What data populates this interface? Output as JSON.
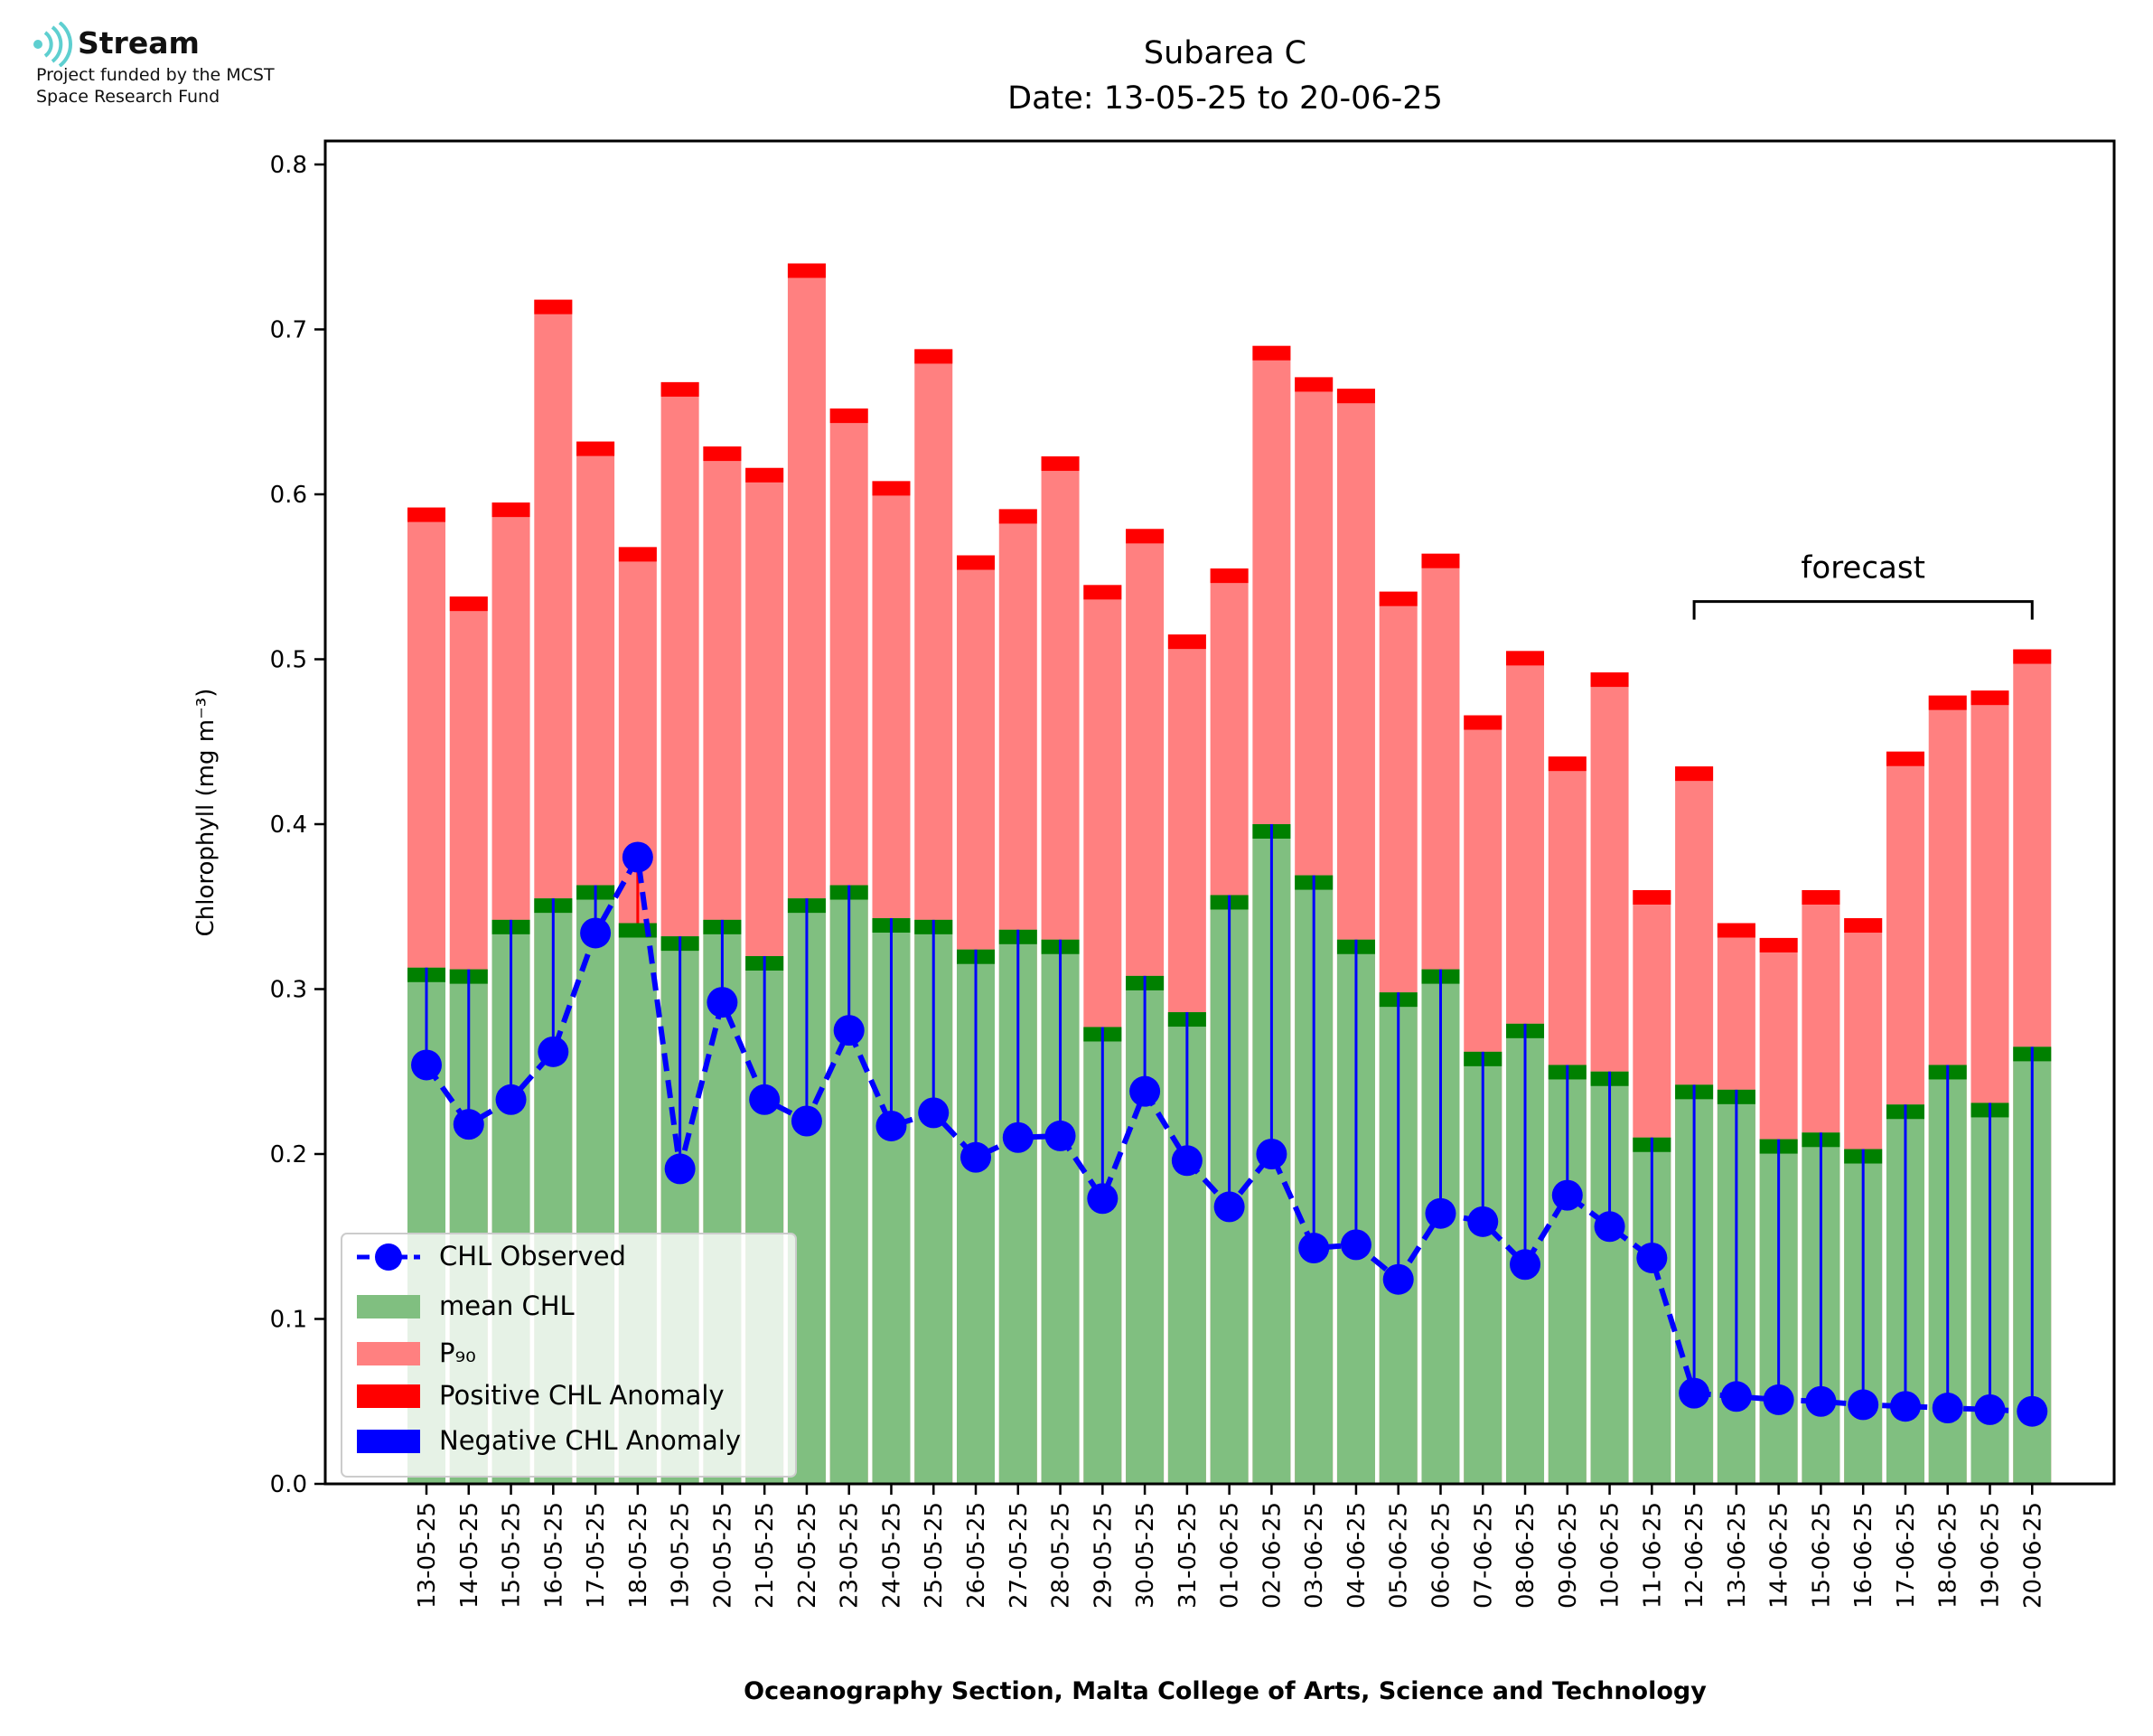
{
  "logo": {
    "brand": "Stream",
    "line1": "Project funded by the MCST",
    "line2": "Space Research Fund"
  },
  "colors": {
    "mean": "#80bf80",
    "mean_cap": "#008000",
    "p90": "#ff8080",
    "p90_cap": "#ff0000",
    "observed": "#0000ff",
    "logo_icon": "#5ecfd0"
  },
  "chart_data": {
    "type": "bar",
    "title": "Subarea C",
    "subtitle": "Date: 13-05-25 to 20-06-25",
    "xlabel": "Oceanography Section, Malta College of Arts, Science and Technology",
    "ylabel": "Chlorophyll (mg m⁻³)",
    "ylim": [
      0,
      0.8
    ],
    "yticks": [
      "0.0",
      "0.1",
      "0.2",
      "0.3",
      "0.4",
      "0.5",
      "0.6",
      "0.7",
      "0.8"
    ],
    "legend_position": "lower-left",
    "categories": [
      "13-05-25",
      "14-05-25",
      "15-05-25",
      "16-05-25",
      "17-05-25",
      "18-05-25",
      "19-05-25",
      "20-05-25",
      "21-05-25",
      "22-05-25",
      "23-05-25",
      "24-05-25",
      "25-05-25",
      "26-05-25",
      "27-05-25",
      "28-05-25",
      "29-05-25",
      "30-05-25",
      "31-05-25",
      "01-06-25",
      "02-06-25",
      "03-06-25",
      "04-06-25",
      "05-06-25",
      "06-06-25",
      "07-06-25",
      "08-06-25",
      "09-06-25",
      "10-06-25",
      "11-06-25",
      "12-06-25",
      "13-06-25",
      "14-06-25",
      "15-06-25",
      "16-06-25",
      "17-06-25",
      "18-06-25",
      "19-06-25",
      "20-06-25"
    ],
    "series": [
      {
        "name": "mean CHL",
        "values": [
          0.313,
          0.312,
          0.342,
          0.355,
          0.363,
          0.34,
          0.332,
          0.342,
          0.32,
          0.355,
          0.363,
          0.343,
          0.342,
          0.324,
          0.336,
          0.33,
          0.277,
          0.308,
          0.286,
          0.357,
          0.4,
          0.369,
          0.33,
          0.298,
          0.312,
          0.262,
          0.279,
          0.254,
          0.25,
          0.21,
          0.242,
          0.239,
          0.209,
          0.213,
          0.203,
          0.23,
          0.254,
          0.231,
          0.265
        ]
      },
      {
        "name": "P₉₀",
        "values": [
          0.592,
          0.538,
          0.595,
          0.718,
          0.632,
          0.568,
          0.668,
          0.629,
          0.616,
          0.74,
          0.652,
          0.608,
          0.688,
          0.563,
          0.591,
          0.623,
          0.545,
          0.579,
          0.515,
          0.555,
          0.69,
          0.671,
          0.664,
          0.541,
          0.564,
          0.466,
          0.505,
          0.441,
          0.492,
          0.36,
          0.435,
          0.34,
          0.331,
          0.36,
          0.343,
          0.444,
          0.478,
          0.481,
          0.506
        ]
      },
      {
        "name": "CHL Observed",
        "values": [
          0.254,
          0.218,
          0.233,
          0.262,
          0.334,
          0.38,
          0.191,
          0.292,
          0.233,
          0.22,
          0.275,
          0.217,
          0.225,
          0.198,
          0.21,
          0.211,
          0.173,
          0.238,
          0.196,
          0.168,
          0.2,
          0.143,
          0.145,
          0.124,
          0.164,
          0.159,
          0.133,
          0.175,
          0.156,
          0.137,
          0.055,
          0.053,
          0.051,
          0.05,
          0.048,
          0.047,
          0.046,
          0.045,
          0.044
        ]
      }
    ],
    "anomaly_legend": [
      "Positive CHL Anomaly",
      "Negative CHL Anomaly"
    ],
    "annotation": {
      "text": "forecast",
      "from_category": "12-06-25",
      "to_category": "20-06-25",
      "y": 0.535
    }
  }
}
